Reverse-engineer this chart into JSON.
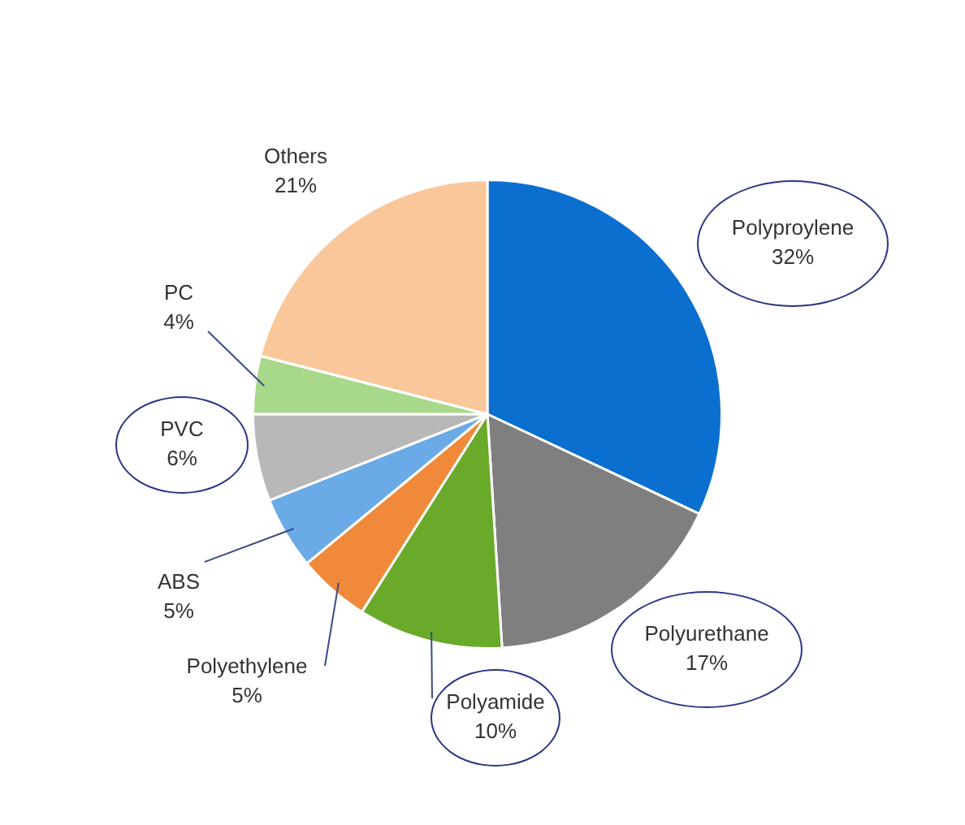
{
  "chart_data": {
    "type": "pie",
    "categories": [
      "Polyproylene",
      "Polyurethane",
      "Polyamide",
      "Polyethylene",
      "ABS",
      "PVC",
      "PC",
      "Others"
    ],
    "values": [
      32,
      17,
      10,
      5,
      5,
      6,
      4,
      21
    ],
    "value_labels": [
      "32%",
      "17%",
      "10%",
      "5%",
      "5%",
      "6%",
      "4%",
      "21%"
    ],
    "colors": [
      "#0b6fd0",
      "#7f7f7f",
      "#6aaa2a",
      "#f08a3a",
      "#6aaae6",
      "#b8b8b8",
      "#a8d88a",
      "#f9c79a"
    ],
    "legend": false
  }
}
